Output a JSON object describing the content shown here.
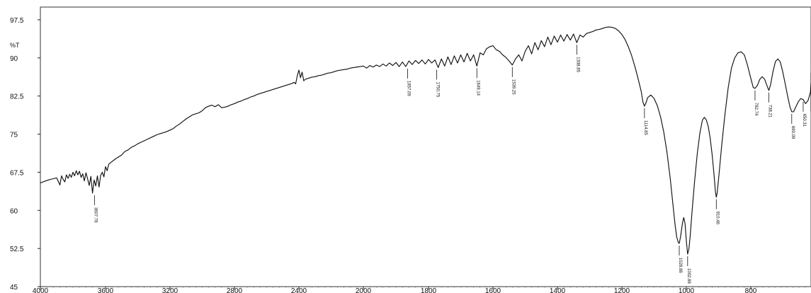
{
  "chart_data": {
    "type": "line",
    "title": "",
    "xlabel": "",
    "ylabel": "%T",
    "xlim": [
      4000,
      440
    ],
    "ylim": [
      45,
      100
    ],
    "grid": true,
    "x_ticks": [
      4000,
      3600,
      3200,
      2800,
      2400,
      2000,
      1800,
      1600,
      1400,
      1200,
      1000,
      800
    ],
    "y_ticks": [
      45,
      52.5,
      60,
      67.5,
      75,
      82.5,
      90,
      97.5
    ],
    "x_tick_labels": [
      "4000",
      "3600",
      "3200",
      "2800",
      "2400",
      "2000",
      "1800",
      "1600",
      "1400",
      "1200",
      "1000",
      "800"
    ],
    "y_tick_labels": [
      "45",
      "52.5",
      "60",
      "67.5",
      "75",
      "82.5",
      "90",
      "97.5"
    ],
    "series": [
      {
        "values": [
          [
            4000,
            65.4
          ],
          [
            3975,
            65.7
          ],
          [
            3950,
            66.0
          ],
          [
            3925,
            66.2
          ],
          [
            3900,
            66.4
          ],
          [
            3880,
            65.0
          ],
          [
            3870,
            66.8
          ],
          [
            3860,
            66.1
          ],
          [
            3850,
            65.6
          ],
          [
            3840,
            67.0
          ],
          [
            3830,
            66.3
          ],
          [
            3820,
            67.1
          ],
          [
            3810,
            66.5
          ],
          [
            3800,
            67.5
          ],
          [
            3790,
            66.8
          ],
          [
            3780,
            67.8
          ],
          [
            3770,
            67.0
          ],
          [
            3760,
            67.7
          ],
          [
            3750,
            66.5
          ],
          [
            3740,
            67.2
          ],
          [
            3730,
            65.8
          ],
          [
            3720,
            67.4
          ],
          [
            3710,
            66.2
          ],
          [
            3700,
            64.9
          ],
          [
            3690,
            66.7
          ],
          [
            3680,
            63.4
          ],
          [
            3670,
            66.0
          ],
          [
            3660,
            64.8
          ],
          [
            3650,
            66.8
          ],
          [
            3640,
            64.6
          ],
          [
            3630,
            66.9
          ],
          [
            3620,
            67.5
          ],
          [
            3610,
            66.6
          ],
          [
            3600,
            68.6
          ],
          [
            3590,
            67.8
          ],
          [
            3580,
            69.1
          ],
          [
            3560,
            69.6
          ],
          [
            3540,
            70.1
          ],
          [
            3520,
            70.5
          ],
          [
            3500,
            70.9
          ],
          [
            3480,
            71.6
          ],
          [
            3460,
            71.9
          ],
          [
            3440,
            72.4
          ],
          [
            3420,
            72.7
          ],
          [
            3400,
            73.1
          ],
          [
            3380,
            73.4
          ],
          [
            3360,
            73.7
          ],
          [
            3340,
            74.0
          ],
          [
            3320,
            74.3
          ],
          [
            3300,
            74.6
          ],
          [
            3280,
            74.9
          ],
          [
            3260,
            75.1
          ],
          [
            3240,
            75.3
          ],
          [
            3220,
            75.5
          ],
          [
            3200,
            75.8
          ],
          [
            3180,
            76.1
          ],
          [
            3160,
            76.6
          ],
          [
            3140,
            77.0
          ],
          [
            3120,
            77.5
          ],
          [
            3100,
            78.0
          ],
          [
            3080,
            78.4
          ],
          [
            3060,
            78.8
          ],
          [
            3040,
            79.0
          ],
          [
            3020,
            79.2
          ],
          [
            3000,
            79.6
          ],
          [
            2980,
            80.2
          ],
          [
            2960,
            80.5
          ],
          [
            2940,
            80.7
          ],
          [
            2920,
            80.4
          ],
          [
            2900,
            80.8
          ],
          [
            2880,
            80.2
          ],
          [
            2860,
            80.3
          ],
          [
            2840,
            80.5
          ],
          [
            2820,
            80.8
          ],
          [
            2800,
            81.0
          ],
          [
            2780,
            81.3
          ],
          [
            2760,
            81.5
          ],
          [
            2740,
            81.8
          ],
          [
            2720,
            82.0
          ],
          [
            2700,
            82.3
          ],
          [
            2680,
            82.5
          ],
          [
            2660,
            82.8
          ],
          [
            2640,
            83.0
          ],
          [
            2620,
            83.2
          ],
          [
            2600,
            83.4
          ],
          [
            2580,
            83.6
          ],
          [
            2560,
            83.8
          ],
          [
            2540,
            84.0
          ],
          [
            2520,
            84.2
          ],
          [
            2500,
            84.4
          ],
          [
            2480,
            84.6
          ],
          [
            2460,
            84.8
          ],
          [
            2440,
            85.0
          ],
          [
            2430,
            85.2
          ],
          [
            2420,
            84.9
          ],
          [
            2410,
            86.5
          ],
          [
            2400,
            87.6
          ],
          [
            2390,
            86.1
          ],
          [
            2380,
            87.2
          ],
          [
            2370,
            85.5
          ],
          [
            2360,
            85.8
          ],
          [
            2340,
            86.0
          ],
          [
            2320,
            86.2
          ],
          [
            2300,
            86.3
          ],
          [
            2280,
            86.5
          ],
          [
            2260,
            86.6
          ],
          [
            2240,
            86.8
          ],
          [
            2220,
            87.0
          ],
          [
            2200,
            87.1
          ],
          [
            2180,
            87.3
          ],
          [
            2160,
            87.5
          ],
          [
            2140,
            87.6
          ],
          [
            2120,
            87.7
          ],
          [
            2100,
            87.8
          ],
          [
            2080,
            88.0
          ],
          [
            2060,
            88.1
          ],
          [
            2040,
            88.2
          ],
          [
            2020,
            88.3
          ],
          [
            2000,
            88.4
          ],
          [
            1990,
            88.0
          ],
          [
            1980,
            88.5
          ],
          [
            1970,
            88.2
          ],
          [
            1960,
            88.6
          ],
          [
            1950,
            88.3
          ],
          [
            1940,
            88.8
          ],
          [
            1930,
            88.4
          ],
          [
            1920,
            89.0
          ],
          [
            1910,
            88.5
          ],
          [
            1900,
            89.1
          ],
          [
            1890,
            88.3
          ],
          [
            1880,
            89.2
          ],
          [
            1870,
            88.3
          ],
          [
            1860,
            89.4
          ],
          [
            1850,
            88.7
          ],
          [
            1840,
            89.5
          ],
          [
            1830,
            88.9
          ],
          [
            1820,
            89.6
          ],
          [
            1810,
            88.8
          ],
          [
            1800,
            89.7
          ],
          [
            1790,
            89.0
          ],
          [
            1780,
            89.6
          ],
          [
            1770,
            88.1
          ],
          [
            1760,
            89.8
          ],
          [
            1750,
            88.4
          ],
          [
            1740,
            90.2
          ],
          [
            1730,
            88.7
          ],
          [
            1720,
            90.4
          ],
          [
            1710,
            89.0
          ],
          [
            1700,
            90.6
          ],
          [
            1690,
            89.2
          ],
          [
            1680,
            90.9
          ],
          [
            1670,
            89.4
          ],
          [
            1660,
            90.6
          ],
          [
            1650,
            88.4
          ],
          [
            1640,
            91.0
          ],
          [
            1630,
            90.6
          ],
          [
            1620,
            91.8
          ],
          [
            1610,
            92.2
          ],
          [
            1600,
            92.4
          ],
          [
            1590,
            91.6
          ],
          [
            1580,
            91.3
          ],
          [
            1570,
            90.6
          ],
          [
            1560,
            90.1
          ],
          [
            1550,
            89.4
          ],
          [
            1540,
            88.6
          ],
          [
            1530,
            89.8
          ],
          [
            1520,
            90.6
          ],
          [
            1510,
            89.4
          ],
          [
            1500,
            91.3
          ],
          [
            1490,
            92.4
          ],
          [
            1480,
            90.8
          ],
          [
            1470,
            93.0
          ],
          [
            1460,
            91.6
          ],
          [
            1450,
            93.4
          ],
          [
            1440,
            92.2
          ],
          [
            1430,
            94.1
          ],
          [
            1420,
            92.6
          ],
          [
            1410,
            94.3
          ],
          [
            1400,
            93.1
          ],
          [
            1390,
            94.5
          ],
          [
            1380,
            93.3
          ],
          [
            1370,
            94.6
          ],
          [
            1360,
            93.5
          ],
          [
            1350,
            94.7
          ],
          [
            1340,
            93.0
          ],
          [
            1330,
            94.5
          ],
          [
            1320,
            94.1
          ],
          [
            1310,
            94.8
          ],
          [
            1300,
            95.0
          ],
          [
            1290,
            95.2
          ],
          [
            1280,
            95.5
          ],
          [
            1270,
            95.6
          ],
          [
            1260,
            95.8
          ],
          [
            1250,
            96.0
          ],
          [
            1240,
            96.1
          ],
          [
            1230,
            96.0
          ],
          [
            1220,
            95.8
          ],
          [
            1210,
            95.3
          ],
          [
            1200,
            94.6
          ],
          [
            1190,
            93.6
          ],
          [
            1180,
            92.2
          ],
          [
            1170,
            90.5
          ],
          [
            1160,
            88.4
          ],
          [
            1150,
            86.0
          ],
          [
            1140,
            83.4
          ],
          [
            1135,
            81.4
          ],
          [
            1130,
            80.5
          ],
          [
            1125,
            81.2
          ],
          [
            1120,
            82.2
          ],
          [
            1110,
            82.7
          ],
          [
            1100,
            82.0
          ],
          [
            1090,
            80.6
          ],
          [
            1080,
            78.4
          ],
          [
            1070,
            75.4
          ],
          [
            1060,
            71.4
          ],
          [
            1050,
            66.3
          ],
          [
            1040,
            60.2
          ],
          [
            1035,
            57.2
          ],
          [
            1030,
            54.8
          ],
          [
            1025,
            53.7
          ],
          [
            1022,
            53.5
          ],
          [
            1018,
            54.8
          ],
          [
            1012,
            57.5
          ],
          [
            1008,
            58.6
          ],
          [
            1004,
            57.4
          ],
          [
            1000,
            54.0
          ],
          [
            996,
            51.4
          ],
          [
            992,
            52.4
          ],
          [
            988,
            55.0
          ],
          [
            982,
            60.0
          ],
          [
            974,
            66.0
          ],
          [
            966,
            71.2
          ],
          [
            958,
            75.2
          ],
          [
            950,
            77.8
          ],
          [
            944,
            78.3
          ],
          [
            938,
            77.8
          ],
          [
            932,
            76.5
          ],
          [
            926,
            74.2
          ],
          [
            920,
            71.0
          ],
          [
            914,
            67.0
          ],
          [
            910,
            63.8
          ],
          [
            907,
            62.6
          ],
          [
            904,
            63.6
          ],
          [
            898,
            67.5
          ],
          [
            890,
            73.0
          ],
          [
            880,
            79.0
          ],
          [
            870,
            84.2
          ],
          [
            860,
            88.0
          ],
          [
            850,
            90.0
          ],
          [
            840,
            91.0
          ],
          [
            830,
            91.2
          ],
          [
            820,
            90.6
          ],
          [
            810,
            88.5
          ],
          [
            800,
            86.0
          ],
          [
            792,
            84.2
          ],
          [
            786,
            84.0
          ],
          [
            778,
            84.6
          ],
          [
            770,
            85.8
          ],
          [
            762,
            86.3
          ],
          [
            754,
            85.8
          ],
          [
            746,
            84.5
          ],
          [
            740,
            83.6
          ],
          [
            734,
            84.8
          ],
          [
            726,
            87.4
          ],
          [
            718,
            89.3
          ],
          [
            710,
            89.8
          ],
          [
            702,
            89.2
          ],
          [
            694,
            87.3
          ],
          [
            686,
            85.0
          ],
          [
            678,
            82.6
          ],
          [
            670,
            80.4
          ],
          [
            664,
            79.4
          ],
          [
            658,
            79.4
          ],
          [
            650,
            80.4
          ],
          [
            642,
            81.4
          ],
          [
            634,
            82.0
          ],
          [
            626,
            81.8
          ],
          [
            618,
            81.0
          ],
          [
            610,
            81.6
          ],
          [
            602,
            83.2
          ],
          [
            594,
            85.2
          ],
          [
            586,
            86.5
          ],
          [
            578,
            87.0
          ],
          [
            570,
            86.5
          ],
          [
            562,
            85.0
          ],
          [
            554,
            83.0
          ],
          [
            546,
            80.5
          ],
          [
            538,
            79.5
          ],
          [
            530,
            79.8
          ],
          [
            522,
            80.8
          ],
          [
            514,
            82.3
          ],
          [
            506,
            84.0
          ],
          [
            498,
            85.2
          ],
          [
            490,
            86.0
          ],
          [
            482,
            86.4
          ],
          [
            474,
            86.2
          ],
          [
            466,
            85.6
          ],
          [
            458,
            84.8
          ],
          [
            450,
            84.0
          ],
          [
            440,
            83.4
          ]
        ]
      }
    ],
    "peak_labels": [
      {
        "label": "3607.78",
        "x": 3668,
        "y": 63.4
      },
      {
        "label": "1857.09",
        "x": 1864,
        "y": 88.3
      },
      {
        "label": "1750.75",
        "x": 1775,
        "y": 88.1
      },
      {
        "label": "1649.14",
        "x": 1650,
        "y": 88.4
      },
      {
        "label": "1539.25",
        "x": 1540,
        "y": 88.6
      },
      {
        "label": "1338.85",
        "x": 1340,
        "y": 93.0
      },
      {
        "label": "1114.85",
        "x": 1130,
        "y": 80.5
      },
      {
        "label": "1028.88",
        "x": 1022,
        "y": 53.5
      },
      {
        "label": "1002.88",
        "x": 996,
        "y": 51.4
      },
      {
        "label": "910.46",
        "x": 907,
        "y": 62.6
      },
      {
        "label": "782.74",
        "x": 786,
        "y": 84.0
      },
      {
        "label": "738.21",
        "x": 740,
        "y": 83.6
      },
      {
        "label": "690.09",
        "x": 664,
        "y": 79.4
      },
      {
        "label": "650.31",
        "x": 626,
        "y": 81.8
      }
    ]
  }
}
